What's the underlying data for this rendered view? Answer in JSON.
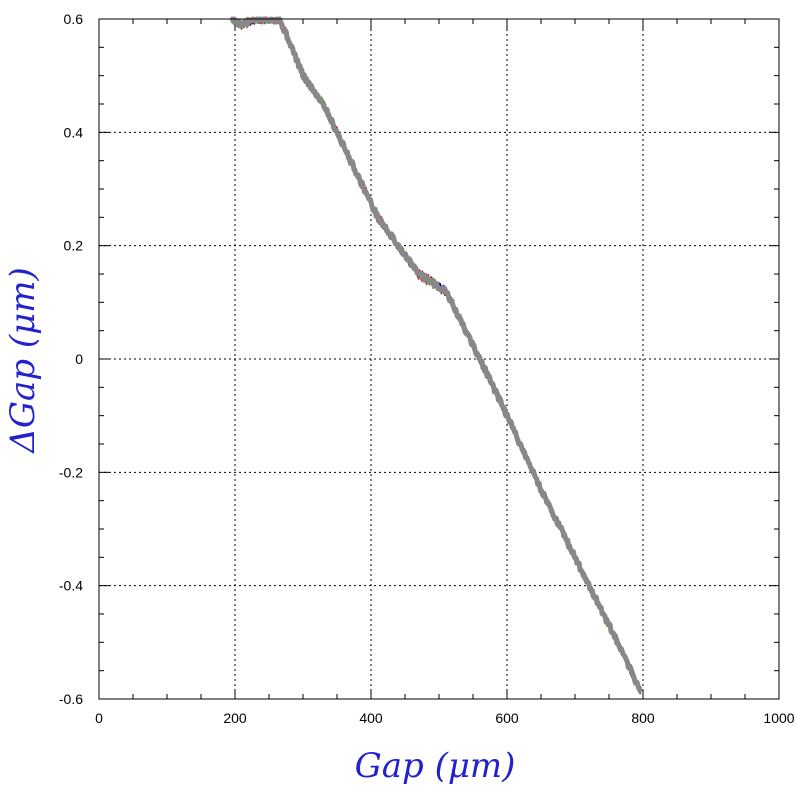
{
  "chart_data": {
    "type": "line",
    "title": "",
    "xlabel": "Gap  (μm)",
    "ylabel": "ΔGap  (μm)",
    "xlim": [
      0,
      1000
    ],
    "ylim": [
      -0.6,
      0.6
    ],
    "x_ticks": [
      "0",
      "200",
      "400",
      "600",
      "800",
      "1000"
    ],
    "y_ticks": [
      "-0.6",
      "-0.4",
      "-0.2",
      "0",
      "0.2",
      "0.4",
      "0.6"
    ],
    "grid": true,
    "grid_style": "dotted",
    "label_color": "#2222cc",
    "series": [
      {
        "color": "#0000cc",
        "noise": 0.008,
        "seed": 11
      },
      {
        "color": "#dd0000",
        "noise": 0.01,
        "seed": 23
      },
      {
        "color": "#00bb00",
        "noise": 0.008,
        "seed": 37
      },
      {
        "color": "#888888",
        "noise": 0.005,
        "seed": 5,
        "width": 5
      }
    ],
    "trend": {
      "x": [
        195,
        210,
        230,
        265,
        280,
        300,
        330,
        370,
        410,
        470,
        510,
        560,
        600,
        650,
        700,
        750,
        798
      ],
      "y": [
        0.6,
        0.59,
        0.6,
        0.6,
        0.56,
        0.5,
        0.45,
        0.35,
        0.25,
        0.15,
        0.12,
        0.0,
        -0.1,
        -0.23,
        -0.35,
        -0.47,
        -0.59
      ]
    }
  }
}
